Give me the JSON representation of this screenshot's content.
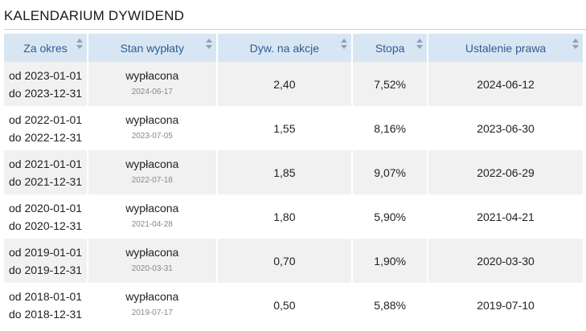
{
  "title": "KALENDARIUM DYWIDEND",
  "headers": [
    "Za okres",
    "Stan wypłaty",
    "Dyw. na akcje",
    "Stopa",
    "Ustalenie prawa"
  ],
  "rows": [
    {
      "from": "od 2023-01-01",
      "to": "do 2023-12-31",
      "status": "wypłacona",
      "paid_date": "2024-06-17",
      "dividend": "2,40",
      "yield": "7,52%",
      "record_date": "2024-06-12"
    },
    {
      "from": "od 2022-01-01",
      "to": "do 2022-12-31",
      "status": "wypłacona",
      "paid_date": "2023-07-05",
      "dividend": "1,55",
      "yield": "8,16%",
      "record_date": "2023-06-30"
    },
    {
      "from": "od 2021-01-01",
      "to": "do 2021-12-31",
      "status": "wypłacona",
      "paid_date": "2022-07-18",
      "dividend": "1,85",
      "yield": "9,07%",
      "record_date": "2022-06-29"
    },
    {
      "from": "od 2020-01-01",
      "to": "do 2020-12-31",
      "status": "wypłacona",
      "paid_date": "2021-04-28",
      "dividend": "1,80",
      "yield": "5,90%",
      "record_date": "2021-04-21"
    },
    {
      "from": "od 2019-01-01",
      "to": "do 2019-12-31",
      "status": "wypłacona",
      "paid_date": "2020-03-31",
      "dividend": "0,70",
      "yield": "1,90%",
      "record_date": "2020-03-30"
    },
    {
      "from": "od 2018-01-01",
      "to": "do 2018-12-31",
      "status": "wypłacona",
      "paid_date": "2019-07-17",
      "dividend": "0,50",
      "yield": "5,88%",
      "record_date": "2019-07-10"
    }
  ],
  "colors": {
    "header_bg": "#d8e6f4",
    "header_text": "#2e5d90",
    "odd_row": "#f1f1f1",
    "even_row": "#ffffff"
  }
}
